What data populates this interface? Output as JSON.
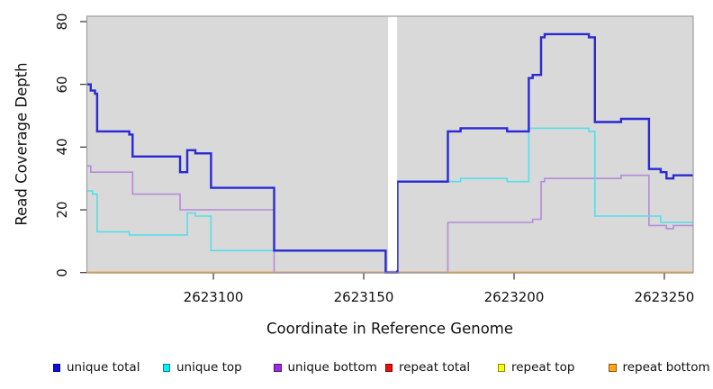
{
  "chart_data": {
    "type": "line",
    "subtype": "step-coverage-plot",
    "title": "",
    "xlabel": "Coordinate in Reference Genome",
    "ylabel": "Read Coverage Depth",
    "xlim": [
      2623057.9,
      2623259.6
    ],
    "ylim": [
      0,
      80
    ],
    "x_ticks": [
      2623100,
      2623150,
      2623200,
      2623250
    ],
    "y_ticks": [
      0,
      20,
      40,
      60,
      80
    ],
    "grid": false,
    "legend_position": "bottom",
    "plot_background": "#d9d9d9",
    "box_border_color": "#9e9e9e",
    "tick_color": "#333333",
    "no_data_gap": {
      "x0": 2623158.1,
      "x1": 2623161.1,
      "fill": "#ffffff"
    },
    "series": [
      {
        "name": "repeat total",
        "color": "#e02020",
        "width": 1.6,
        "steps": [
          [
            2623057.9,
            0
          ]
        ]
      },
      {
        "name": "repeat top",
        "color": "#efe410",
        "width": 1.6,
        "steps": [
          [
            2623057.9,
            0
          ]
        ]
      },
      {
        "name": "repeat bottom",
        "color": "#ffa21c",
        "width": 2.2,
        "steps": [
          [
            2623057.9,
            0
          ]
        ]
      },
      {
        "name": "unique bottom",
        "color": "#b58bda",
        "width": 1.6,
        "steps": [
          [
            2623057.9,
            34
          ],
          [
            2623059.2,
            32
          ],
          [
            2623073.1,
            25
          ],
          [
            2623088.9,
            20
          ],
          [
            2623120.2,
            0
          ],
          [
            2623178,
            16
          ],
          [
            2623206.2,
            17
          ],
          [
            2623209,
            29
          ],
          [
            2623210.2,
            30
          ],
          [
            2623235.6,
            31
          ],
          [
            2623244.9,
            15
          ],
          [
            2623250.7,
            14
          ],
          [
            2623253,
            15
          ]
        ]
      },
      {
        "name": "unique top",
        "color": "#55dee9",
        "width": 1.6,
        "steps": [
          [
            2623057.9,
            26
          ],
          [
            2623059.8,
            25
          ],
          [
            2623061.3,
            13
          ],
          [
            2623072,
            12
          ],
          [
            2623091.3,
            19
          ],
          [
            2623094,
            18
          ],
          [
            2623099.2,
            7
          ],
          [
            2623157.3,
            0
          ],
          [
            2623161.2,
            29
          ],
          [
            2623182.2,
            30
          ],
          [
            2623197.7,
            29
          ],
          [
            2623204.9,
            46
          ],
          [
            2623224.9,
            45
          ],
          [
            2623226.9,
            18
          ],
          [
            2623248.8,
            16
          ]
        ]
      },
      {
        "name": "unique total",
        "color": "#2929d6",
        "width": 2.4,
        "steps": [
          [
            2623057.9,
            60
          ],
          [
            2623059.2,
            58
          ],
          [
            2623060.6,
            57
          ],
          [
            2623061.3,
            45
          ],
          [
            2623072,
            44
          ],
          [
            2623073.1,
            37
          ],
          [
            2623088.9,
            32
          ],
          [
            2623091.3,
            39
          ],
          [
            2623094,
            38
          ],
          [
            2623099.2,
            27
          ],
          [
            2623120.2,
            7
          ],
          [
            2623157.3,
            0
          ],
          [
            2623161.2,
            29
          ],
          [
            2623178,
            45
          ],
          [
            2623182.2,
            46
          ],
          [
            2623197.7,
            45
          ],
          [
            2623204.9,
            62
          ],
          [
            2623206.2,
            63
          ],
          [
            2623209,
            75
          ],
          [
            2623210.2,
            76
          ],
          [
            2623224.9,
            75
          ],
          [
            2623226.9,
            48
          ],
          [
            2623235.6,
            49
          ],
          [
            2623244.9,
            33
          ],
          [
            2623248.8,
            32
          ],
          [
            2623250.7,
            30
          ],
          [
            2623253,
            31
          ]
        ]
      }
    ],
    "legend": {
      "items": [
        {
          "label": "unique total",
          "fill": "#0e0ee4",
          "border": "#00008b"
        },
        {
          "label": "unique top",
          "fill": "#00f0ff",
          "border": "#0f7f93"
        },
        {
          "label": "unique bottom",
          "fill": "#9d2be2",
          "border": "#4b1472"
        },
        {
          "label": "repeat total",
          "fill": "#f50a0a",
          "border": "#7a0606"
        },
        {
          "label": "repeat top",
          "fill": "#fcfc0c",
          "border": "#8c8c00"
        },
        {
          "label": "repeat bottom",
          "fill": "#ffa51e",
          "border": "#8a5800"
        }
      ]
    }
  }
}
